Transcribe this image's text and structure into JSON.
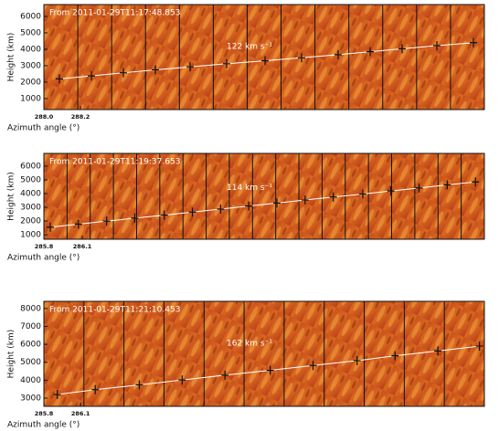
{
  "chart_data": [
    {
      "type": "line",
      "annotation": "From 2011-01-29T11:17:48.853",
      "speed_label": "122 km s⁻¹",
      "xlabel": "Azimuth angle (°)",
      "ylabel": "Height (km)",
      "xlim": [
        288.0,
        290.41
      ],
      "ylim": [
        330,
        6720
      ],
      "xticks": [
        {
          "value": 288.0,
          "label": "288.0"
        },
        288.2
      ],
      "yticks": [
        1000,
        2000,
        3000,
        4000,
        5000,
        6000
      ],
      "series": [
        {
          "color": "#ffffff",
          "x": [
            288.085,
            288.26,
            288.435,
            288.61,
            288.8,
            289.0,
            289.21,
            289.41,
            289.61,
            289.785,
            289.96,
            290.15,
            290.35
          ],
          "values": [
            2200,
            2380,
            2570,
            2750,
            2930,
            3120,
            3300,
            3480,
            3670,
            3850,
            4030,
            4220,
            4400
          ]
        }
      ]
    },
    {
      "type": "line",
      "annotation": "From 2011-01-29T11:19:37.653",
      "speed_label": "114 km s⁻¹",
      "xlabel": "Azimuth angle (°)",
      "ylabel": "Height (km)",
      "xlim": [
        285.8,
        289.24
      ],
      "ylim": [
        670,
        6930
      ],
      "xticks": [
        285.8,
        286.1
      ],
      "yticks": [
        1000,
        2000,
        3000,
        4000,
        5000,
        6000
      ],
      "series": [
        {
          "color": "#ffffff",
          "x": [
            285.85,
            286.07,
            286.29,
            286.51,
            286.74,
            286.96,
            287.18,
            287.4,
            287.62,
            287.84,
            288.06,
            288.29,
            288.51,
            288.73,
            288.95,
            289.17
          ],
          "values": [
            1550,
            1770,
            1990,
            2210,
            2430,
            2650,
            2870,
            3090,
            3310,
            3530,
            3750,
            3970,
            4190,
            4410,
            4630,
            4850
          ]
        }
      ]
    },
    {
      "type": "line",
      "annotation": "From 2011-01-29T11:21:10.453",
      "speed_label": "162 km s⁻¹",
      "xlabel": "Azimuth angle (°)",
      "ylabel": "Height (km)",
      "xlim": [
        285.8,
        289.4
      ],
      "ylim": [
        2540,
        8400
      ],
      "xticks": [
        285.8,
        286.1
      ],
      "yticks": [
        3000,
        4000,
        5000,
        6000,
        7000,
        8000
      ],
      "series": [
        {
          "color": "#ffffff",
          "x": [
            285.91,
            286.22,
            286.58,
            286.93,
            287.28,
            287.65,
            288.0,
            288.36,
            288.67,
            289.02,
            289.36
          ],
          "values": [
            3200,
            3470,
            3740,
            4010,
            4280,
            4550,
            4820,
            5090,
            5360,
            5630,
            5900
          ]
        }
      ]
    }
  ]
}
